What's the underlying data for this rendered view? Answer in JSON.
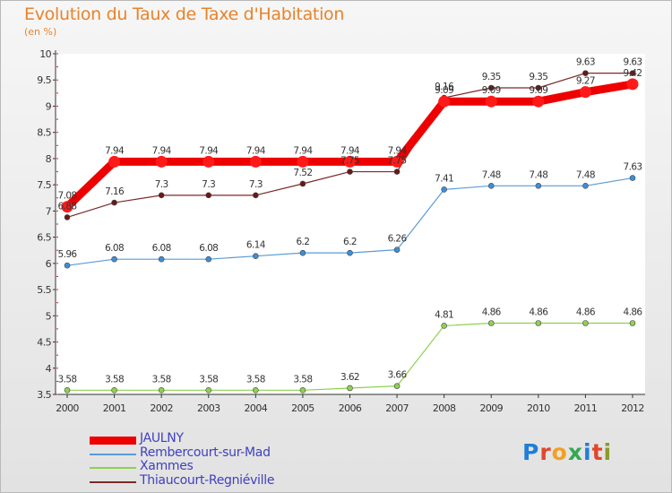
{
  "header": {
    "title": "Evolution du Taux de Taxe d'Habitation",
    "unit": "(en %)"
  },
  "logo": {
    "text": "Proxiti",
    "colors": [
      "#1f7fd6",
      "#e0472b",
      "#f1a020",
      "#34a853",
      "#1f7fd6",
      "#e0472b",
      "#8b9a2b"
    ]
  },
  "chart_data": {
    "type": "line",
    "title": "Evolution du Taux de Taxe d'Habitation",
    "ylabel": "(en %)",
    "xlabel": "",
    "x": [
      "2000",
      "2001",
      "2002",
      "2003",
      "2004",
      "2005",
      "2006",
      "2007",
      "2008",
      "2009",
      "2010",
      "2011",
      "2012"
    ],
    "ylim": [
      3.5,
      10
    ],
    "yticks": [
      "3.5",
      "4",
      "4.5",
      "5",
      "5.5",
      "6",
      "6.5",
      "7",
      "7.5",
      "8",
      "8.5",
      "9",
      "9.5",
      "10"
    ],
    "grid": false,
    "legend": "bottom-left",
    "series": [
      {
        "name": "JAULNY",
        "color": "#ee0000",
        "values": [
          7.08,
          7.94,
          7.94,
          7.94,
          7.94,
          7.94,
          7.94,
          7.94,
          9.09,
          9.09,
          9.09,
          9.27,
          9.42
        ],
        "labels": [
          "7.08",
          "7.94",
          "7.94",
          "7.94",
          "7.94",
          "7.94",
          "7.94",
          "7.94",
          "9.09",
          "9.09",
          "9.09",
          "9.27",
          "9.42"
        ]
      },
      {
        "name": "Rembercourt-sur-Mad",
        "color": "#5b9bd5",
        "values": [
          5.96,
          6.08,
          6.08,
          6.08,
          6.14,
          6.2,
          6.2,
          6.26,
          7.41,
          7.48,
          7.48,
          7.48,
          7.63
        ],
        "labels": [
          "5.96",
          "6.08",
          "6.08",
          "6.08",
          "6.14",
          "6.2",
          "6.2",
          "6.26",
          "7.41",
          "7.48",
          "7.48",
          "7.48",
          "7.63"
        ]
      },
      {
        "name": "Xammes",
        "color": "#8fd14f",
        "values": [
          3.58,
          3.58,
          3.58,
          3.58,
          3.58,
          3.58,
          3.62,
          3.66,
          4.81,
          4.86,
          4.86,
          4.86,
          4.86
        ],
        "labels": [
          "3.58",
          "3.58",
          "3.58",
          "3.58",
          "3.58",
          "3.58",
          "3.62",
          "3.66",
          "4.81",
          "4.86",
          "4.86",
          "4.86",
          "4.86"
        ]
      },
      {
        "name": "Thiaucourt-Regniéville",
        "color": "#7a2a2a",
        "values": [
          6.88,
          7.16,
          7.3,
          7.3,
          7.3,
          7.52,
          7.75,
          7.75,
          9.16,
          9.35,
          9.35,
          9.63,
          9.63
        ],
        "labels": [
          "6.88",
          "7.16",
          "7.3",
          "7.3",
          "7.3",
          "7.52",
          "7.75",
          "7.75",
          "9.16",
          "9.35",
          "9.35",
          "9.63",
          "9.63"
        ]
      }
    ]
  }
}
